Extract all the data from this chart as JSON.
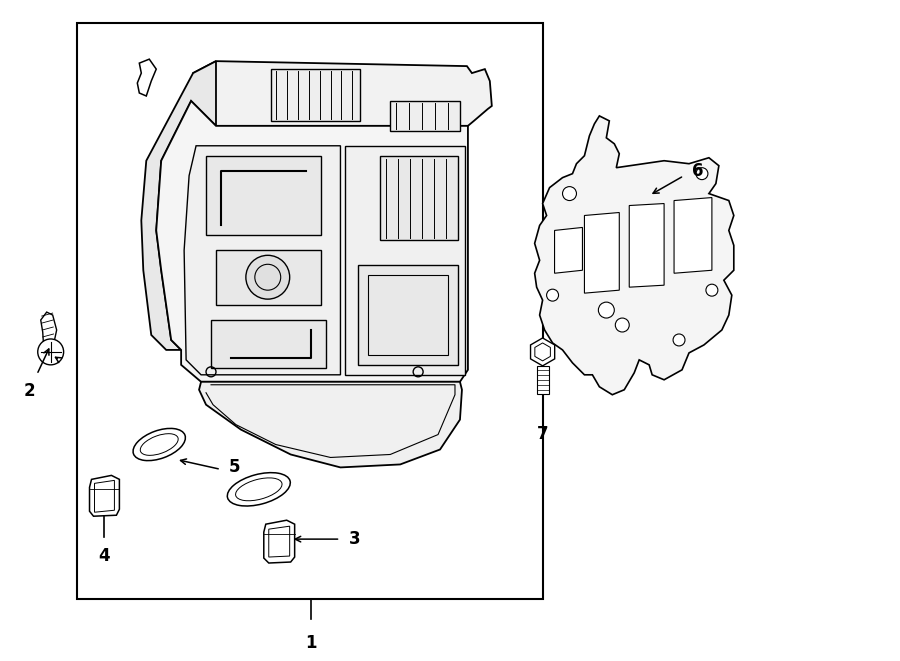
{
  "bg_color": "#ffffff",
  "line_color": "#000000",
  "label_color": "#000000",
  "fig_width": 9.0,
  "fig_height": 6.61,
  "dpi": 100
}
